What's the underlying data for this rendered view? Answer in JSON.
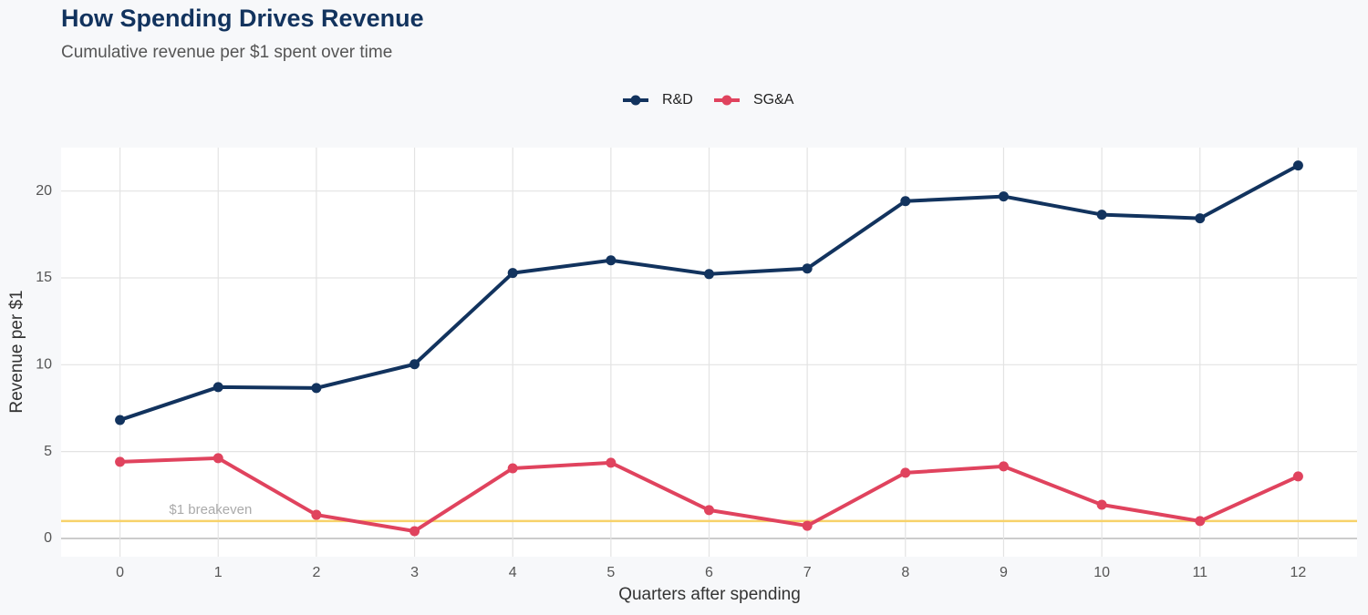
{
  "chart_data": {
    "type": "line",
    "title": "How Spending Drives Revenue",
    "subtitle": "Cumulative revenue per $1 spent over time",
    "x_label": "Quarters after spending",
    "y_label": "Revenue per $1",
    "x": [
      0,
      1,
      2,
      3,
      4,
      5,
      6,
      7,
      8,
      9,
      10,
      11,
      12
    ],
    "series": [
      {
        "name": "R&D",
        "color": "#12335e",
        "values": [
          6.82,
          8.71,
          8.66,
          10.03,
          15.28,
          16.01,
          15.22,
          15.54,
          19.42,
          19.69,
          18.64,
          18.43,
          21.47
        ]
      },
      {
        "name": "SG&A",
        "color": "#e0435e",
        "values": [
          4.41,
          4.62,
          1.36,
          0.42,
          4.04,
          4.36,
          1.63,
          0.73,
          3.78,
          4.15,
          1.94,
          1.0,
          3.57
        ]
      }
    ],
    "xlim": [
      -0.6,
      12.6
    ],
    "xticks": [
      0,
      1,
      2,
      3,
      4,
      5,
      6,
      7,
      8,
      9,
      10,
      11,
      12
    ],
    "ylim": [
      -1.05,
      22.5
    ],
    "yticks": [
      0,
      5,
      10,
      15,
      20
    ],
    "grid": true,
    "legend": "top",
    "reference_line": {
      "value": 1,
      "label": "$1 breakeven",
      "color": "#f7d26a"
    }
  }
}
